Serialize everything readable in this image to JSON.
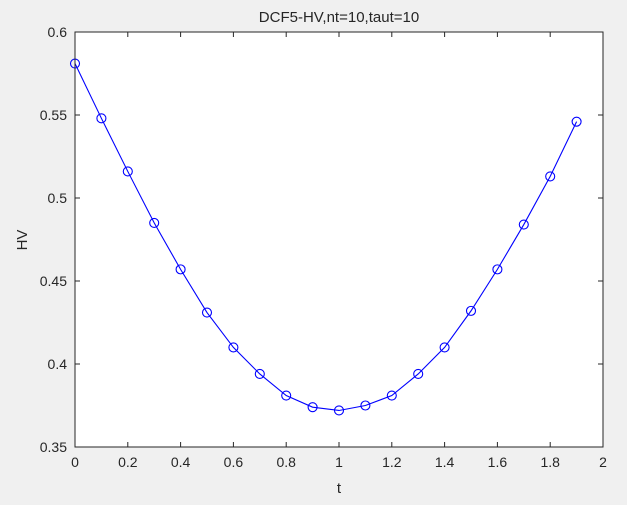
{
  "chart_data": {
    "type": "line",
    "title": "DCF5-HV,nt=10,taut=10",
    "xlabel": "t",
    "ylabel": "HV",
    "xlim": [
      0,
      2
    ],
    "ylim": [
      0.35,
      0.6
    ],
    "xticks": [
      "0",
      "0.2",
      "0.4",
      "0.6",
      "0.8",
      "1",
      "1.2",
      "1.4",
      "1.6",
      "1.8",
      "2"
    ],
    "yticks": [
      "0.35",
      "0.4",
      "0.45",
      "0.5",
      "0.55",
      "0.6"
    ],
    "grid": false,
    "series": [
      {
        "color": "#0000ff",
        "marker": "circle",
        "x": [
          0,
          0.1,
          0.2,
          0.3,
          0.4,
          0.5,
          0.6,
          0.7,
          0.8,
          0.9,
          1.0,
          1.1,
          1.2,
          1.3,
          1.4,
          1.5,
          1.6,
          1.7,
          1.8,
          1.9
        ],
        "y": [
          0.581,
          0.548,
          0.516,
          0.485,
          0.457,
          0.431,
          0.41,
          0.394,
          0.381,
          0.374,
          0.372,
          0.375,
          0.381,
          0.394,
          0.41,
          0.432,
          0.457,
          0.484,
          0.513,
          0.546
        ]
      }
    ]
  }
}
